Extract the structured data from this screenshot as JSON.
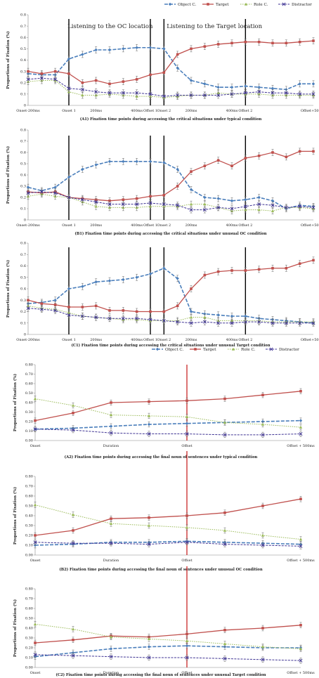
{
  "colors": {
    "object_c": "#4a7ebb",
    "target": "#c0504d",
    "role_c": "#9bbb59",
    "distractor": "#403594",
    "error_bar": "#666666",
    "event_line_top": "#000000",
    "event_line_bottom": "#c00000"
  },
  "chart_data": [
    {
      "id": "A1",
      "type": "line",
      "ylabel": "Proportions of Fixation (%)",
      "ylim": [
        0,
        0.8
      ],
      "yticks": [
        "0",
        "0.1",
        "0.2",
        "0.3",
        "0.4",
        "0.5",
        "0.6",
        "0.7",
        "0.8"
      ],
      "legend": [
        "Object C.",
        "Target",
        "Role C.",
        "Distractor"
      ],
      "legend_position": "top-right",
      "x_tick_labels": [
        {
          "i": 0,
          "label": "Onset-200ms"
        },
        {
          "i": 3,
          "label": "Onset 1"
        },
        {
          "i": 5,
          "label": "200ms"
        },
        {
          "i": 8,
          "label": "400ms"
        },
        {
          "i": 9,
          "label": "Offset 1"
        },
        {
          "i": 10,
          "label": "Onset 2"
        },
        {
          "i": 12,
          "label": "200ms"
        },
        {
          "i": 15,
          "label": "400ms"
        },
        {
          "i": 16,
          "label": "Offset 2"
        },
        {
          "i": 21,
          "label": "Offset+500ms"
        }
      ],
      "event_lines": [
        3,
        9,
        10,
        16
      ],
      "annotations": [
        {
          "text": "Listening to the OC location",
          "x": 2.9,
          "y": 0.7
        },
        {
          "text": "Listening to the Target location",
          "x": 10.2,
          "y": 0.7
        }
      ],
      "caption": "(A1) Fixation time points during accessing the critical situations under typical condition",
      "series": [
        {
          "name": "Object C.",
          "values": [
            0.28,
            0.27,
            0.27,
            0.41,
            0.45,
            0.49,
            0.49,
            0.5,
            0.51,
            0.51,
            0.5,
            0.33,
            0.22,
            0.19,
            0.16,
            0.16,
            0.17,
            0.16,
            0.15,
            0.14,
            0.19,
            0.19
          ]
        },
        {
          "name": "Target",
          "values": [
            0.3,
            0.28,
            0.3,
            0.28,
            0.2,
            0.22,
            0.19,
            0.21,
            0.23,
            0.27,
            0.29,
            0.45,
            0.5,
            0.52,
            0.54,
            0.55,
            0.56,
            0.56,
            0.55,
            0.55,
            0.56,
            0.57
          ]
        },
        {
          "name": "Role C.",
          "values": [
            0.21,
            0.22,
            0.22,
            0.12,
            0.09,
            0.09,
            0.1,
            0.09,
            0.08,
            0.08,
            0.07,
            0.08,
            0.09,
            0.09,
            0.11,
            0.1,
            0.1,
            0.1,
            0.09,
            0.09,
            0.09,
            0.09
          ]
        },
        {
          "name": "Distractor",
          "values": [
            0.23,
            0.24,
            0.23,
            0.15,
            0.14,
            0.12,
            0.11,
            0.11,
            0.11,
            0.1,
            0.08,
            0.09,
            0.09,
            0.09,
            0.09,
            0.1,
            0.11,
            0.12,
            0.11,
            0.11,
            0.1,
            0.1
          ]
        }
      ]
    },
    {
      "id": "B1",
      "type": "line",
      "ylabel": "Proportions of Fixation (%)",
      "ylim": [
        0,
        0.8
      ],
      "yticks": [
        "0",
        "0.1",
        "0.2",
        "0.3",
        "0.4",
        "0.5",
        "0.6",
        "0.7",
        "0.8"
      ],
      "x_tick_labels": [
        {
          "i": 0,
          "label": "Onset-200ms"
        },
        {
          "i": 3,
          "label": "Onset 1"
        },
        {
          "i": 5,
          "label": "200ms"
        },
        {
          "i": 8,
          "label": "400ms"
        },
        {
          "i": 9,
          "label": "Offset 1"
        },
        {
          "i": 10,
          "label": "Onset 2"
        },
        {
          "i": 12,
          "label": "200ms"
        },
        {
          "i": 15,
          "label": "400ms"
        },
        {
          "i": 16,
          "label": "Offset 2"
        },
        {
          "i": 21,
          "label": "Offset+500ms"
        }
      ],
      "event_lines": [
        3,
        9,
        10,
        16
      ],
      "caption": "(B1) Fixation time points during accessing the critical situations  under unusual OC condition",
      "series": [
        {
          "name": "Object C.",
          "values": [
            0.29,
            0.26,
            0.29,
            0.38,
            0.45,
            0.49,
            0.52,
            0.52,
            0.52,
            0.52,
            0.51,
            0.45,
            0.27,
            0.2,
            0.19,
            0.17,
            0.18,
            0.2,
            0.17,
            0.1,
            0.13,
            0.12
          ]
        },
        {
          "name": "Target",
          "values": [
            0.25,
            0.24,
            0.25,
            0.2,
            0.19,
            0.18,
            0.17,
            0.18,
            0.19,
            0.21,
            0.22,
            0.3,
            0.43,
            0.48,
            0.53,
            0.48,
            0.55,
            0.57,
            0.6,
            0.56,
            0.61,
            0.61
          ]
        },
        {
          "name": "Role C.",
          "values": [
            0.21,
            0.23,
            0.21,
            0.2,
            0.16,
            0.12,
            0.11,
            0.11,
            0.11,
            0.12,
            0.12,
            0.12,
            0.14,
            0.14,
            0.11,
            0.08,
            0.09,
            0.09,
            0.08,
            0.11,
            0.11,
            0.1
          ]
        },
        {
          "name": "Distractor",
          "values": [
            0.24,
            0.25,
            0.24,
            0.2,
            0.18,
            0.16,
            0.14,
            0.14,
            0.14,
            0.15,
            0.14,
            0.13,
            0.09,
            0.09,
            0.11,
            0.1,
            0.12,
            0.14,
            0.13,
            0.11,
            0.12,
            0.11
          ]
        }
      ]
    },
    {
      "id": "C1",
      "type": "line",
      "ylabel": "Proportions of Fixation (%)",
      "ylim": [
        0,
        0.8
      ],
      "yticks": [
        "0",
        "0.1",
        "0.2",
        "0.3",
        "0.4",
        "0.5",
        "0.6",
        "0.7",
        "0.8"
      ],
      "x_tick_labels": [
        {
          "i": 0,
          "label": "Onset-200ms"
        },
        {
          "i": 3,
          "label": "Onset 1"
        },
        {
          "i": 5,
          "label": "200ms"
        },
        {
          "i": 8,
          "label": "400ms"
        },
        {
          "i": 9,
          "label": "Offset 1"
        },
        {
          "i": 10,
          "label": "Onset 2"
        },
        {
          "i": 12,
          "label": "200ms"
        },
        {
          "i": 15,
          "label": "400ms"
        },
        {
          "i": 16,
          "label": "Offset 2"
        },
        {
          "i": 21,
          "label": "Offset+500ms"
        }
      ],
      "event_lines": [
        3,
        9,
        10,
        16
      ],
      "caption": "(C1) Fixation time points during accessing the critical situations under unusual Target condition",
      "series": [
        {
          "name": "Object C.",
          "values": [
            0.27,
            0.28,
            0.3,
            0.4,
            0.42,
            0.46,
            0.47,
            0.48,
            0.5,
            0.53,
            0.58,
            0.49,
            0.2,
            0.18,
            0.17,
            0.16,
            0.16,
            0.14,
            0.13,
            0.12,
            0.11,
            0.1
          ]
        },
        {
          "name": "Target",
          "values": [
            0.3,
            0.27,
            0.26,
            0.24,
            0.24,
            0.25,
            0.21,
            0.21,
            0.2,
            0.2,
            0.2,
            0.25,
            0.4,
            0.52,
            0.55,
            0.56,
            0.56,
            0.57,
            0.58,
            0.58,
            0.62,
            0.65
          ]
        },
        {
          "name": "Role C.",
          "values": [
            0.25,
            0.23,
            0.22,
            0.19,
            0.16,
            0.15,
            0.14,
            0.13,
            0.13,
            0.12,
            0.12,
            0.12,
            0.15,
            0.15,
            0.12,
            0.12,
            0.12,
            0.12,
            0.11,
            0.11,
            0.11,
            0.11
          ]
        },
        {
          "name": "Distractor",
          "values": [
            0.23,
            0.22,
            0.21,
            0.17,
            0.16,
            0.15,
            0.14,
            0.14,
            0.14,
            0.13,
            0.12,
            0.11,
            0.1,
            0.11,
            0.1,
            0.1,
            0.11,
            0.11,
            0.1,
            0.1,
            0.1,
            0.1
          ]
        }
      ]
    },
    {
      "id": "A2",
      "type": "line",
      "ylabel": "Proportions of Fixation (%)",
      "ylim": [
        0,
        0.8
      ],
      "yticks": [
        "0.00",
        "0.10",
        "0.20",
        "0.30",
        "0.40",
        "0.50",
        "0.60",
        "0.70",
        "0.80"
      ],
      "legend": [
        "Object C.",
        "Target",
        "Role C.",
        "Distractor"
      ],
      "legend_position": "top-right",
      "x_tick_labels": [
        {
          "i": 0,
          "label": "Onset"
        },
        {
          "i": 2,
          "label": "Duration"
        },
        {
          "i": 4,
          "label": "Offset"
        },
        {
          "i": 7,
          "label": "Offset + 500ms"
        }
      ],
      "event_lines": [
        4
      ],
      "caption": "(A2) Fixation time points during accessing the final noun of sentences under typical condition",
      "series": [
        {
          "name": "Object C.",
          "values": [
            0.12,
            0.13,
            0.15,
            0.17,
            0.18,
            0.19,
            0.2,
            0.21
          ]
        },
        {
          "name": "Target",
          "values": [
            0.21,
            0.29,
            0.4,
            0.41,
            0.42,
            0.44,
            0.48,
            0.52
          ]
        },
        {
          "name": "Role C.",
          "values": [
            0.44,
            0.37,
            0.27,
            0.26,
            0.25,
            0.19,
            0.17,
            0.14
          ]
        },
        {
          "name": "Distractor",
          "values": [
            0.12,
            0.11,
            0.08,
            0.07,
            0.07,
            0.06,
            0.06,
            0.07
          ]
        }
      ]
    },
    {
      "id": "B2",
      "type": "line",
      "ylabel": "Proportions of Fixation (%)",
      "ylim": [
        0,
        0.8
      ],
      "yticks": [
        "0.00",
        "0.10",
        "0.20",
        "0.30",
        "0.40",
        "0.50",
        "0.60",
        "0.70",
        "0.80"
      ],
      "x_tick_labels": [
        {
          "i": 0,
          "label": "Onset"
        },
        {
          "i": 2,
          "label": "Duration"
        },
        {
          "i": 4,
          "label": "Offset"
        },
        {
          "i": 7,
          "label": "Offset + 500ms"
        }
      ],
      "event_lines": [
        4
      ],
      "caption": "(B2) Fixation time points during accessing the final noun of sentences under unusual OC condition",
      "series": [
        {
          "name": "Object C.",
          "values": [
            0.1,
            0.11,
            0.13,
            0.13,
            0.14,
            0.13,
            0.12,
            0.11
          ]
        },
        {
          "name": "Target",
          "values": [
            0.2,
            0.25,
            0.37,
            0.38,
            0.4,
            0.43,
            0.5,
            0.57
          ]
        },
        {
          "name": "Role C.",
          "values": [
            0.51,
            0.41,
            0.32,
            0.3,
            0.28,
            0.25,
            0.2,
            0.16
          ]
        },
        {
          "name": "Distractor",
          "values": [
            0.13,
            0.12,
            0.12,
            0.11,
            0.13,
            0.11,
            0.1,
            0.09
          ]
        }
      ]
    },
    {
      "id": "C2",
      "type": "line",
      "ylabel": "Proportions of Fixation (%)",
      "ylim": [
        0,
        0.8
      ],
      "yticks": [
        "0.00",
        "0.10",
        "0.20",
        "0.30",
        "0.40",
        "0.50",
        "0.60",
        "0.70",
        "0.80"
      ],
      "x_tick_labels": [
        {
          "i": 0,
          "label": "Onset"
        },
        {
          "i": 2,
          "label": "Duration"
        },
        {
          "i": 4,
          "label": "Offset"
        },
        {
          "i": 7,
          "label": "Offset + 500ms"
        }
      ],
      "event_lines": [
        4
      ],
      "caption": "(C2) Fixation time points during accessing the final noun of sentences under unusual Target condition",
      "series": [
        {
          "name": "Object C.",
          "values": [
            0.11,
            0.15,
            0.19,
            0.21,
            0.22,
            0.21,
            0.2,
            0.2
          ]
        },
        {
          "name": "Target",
          "values": [
            0.25,
            0.28,
            0.32,
            0.31,
            0.34,
            0.38,
            0.4,
            0.43
          ]
        },
        {
          "name": "Role C.",
          "values": [
            0.44,
            0.39,
            0.31,
            0.29,
            0.27,
            0.24,
            0.21,
            0.19
          ]
        },
        {
          "name": "Distractor",
          "values": [
            0.13,
            0.12,
            0.11,
            0.1,
            0.1,
            0.09,
            0.08,
            0.07
          ]
        }
      ]
    }
  ]
}
